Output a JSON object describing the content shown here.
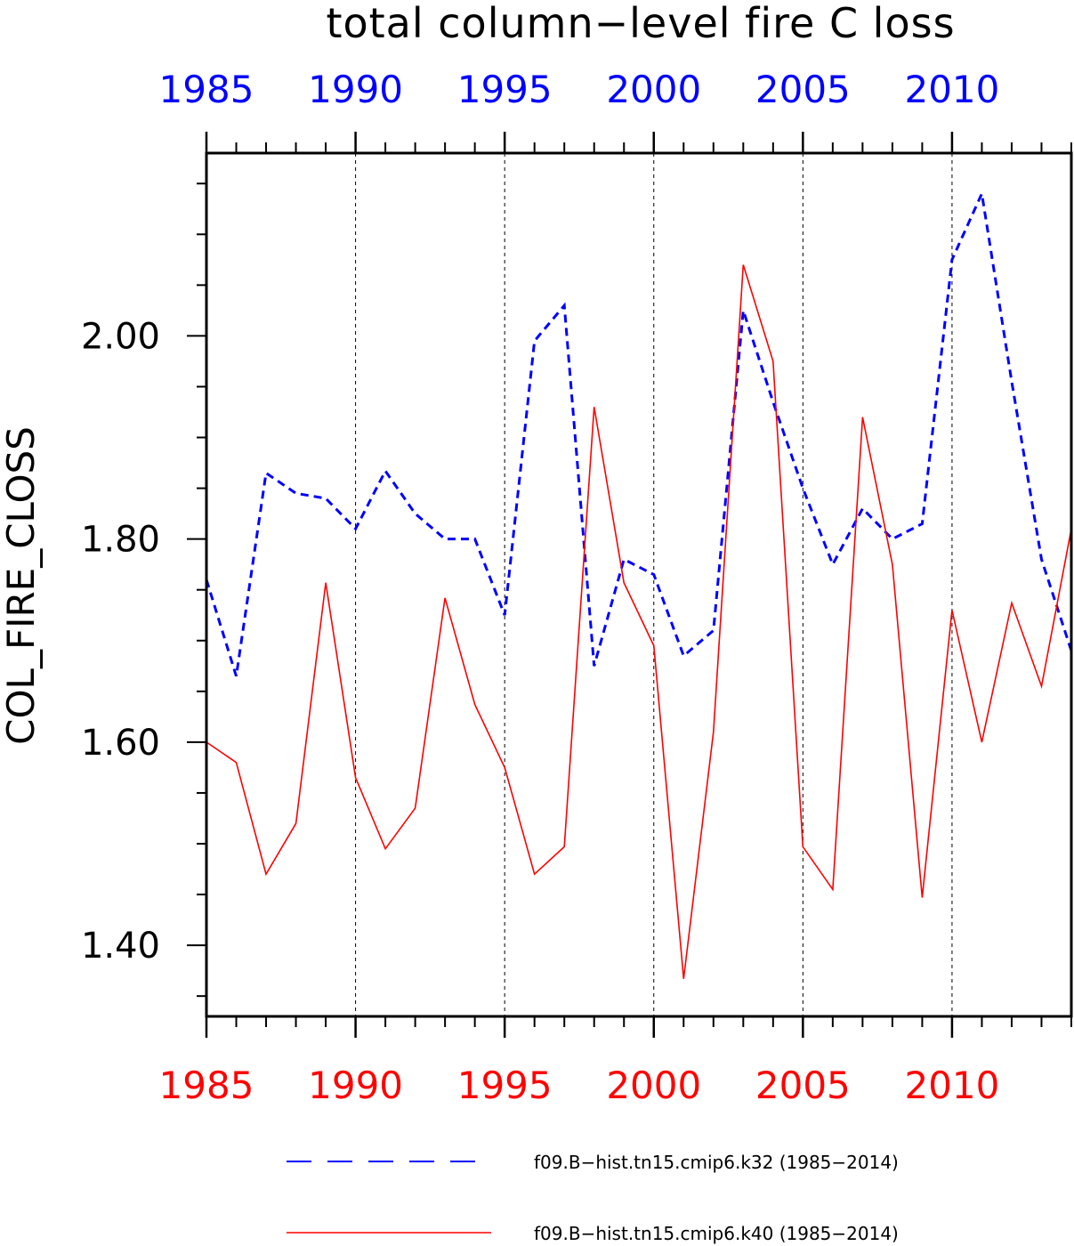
{
  "chart_data": {
    "type": "line",
    "title": "total column−level fire C loss",
    "ylabel": "COL_FIRE_CLOSS",
    "xlabel": "",
    "xlim": [
      1985,
      2014
    ],
    "ylim": [
      1.33,
      2.18
    ],
    "yticks": [
      1.4,
      1.6,
      1.8,
      2.0
    ],
    "ytick_labels": [
      "1.40",
      "1.60",
      "1.80",
      "2.00"
    ],
    "xticks_top": {
      "values": [
        1985,
        1990,
        1995,
        2000,
        2005,
        2010
      ],
      "labels": [
        "1985",
        "1990",
        "1995",
        "2000",
        "2005",
        "2010"
      ],
      "color": "#0000ff"
    },
    "xticks_bottom": {
      "values": [
        1985,
        1990,
        1995,
        2000,
        2005,
        2010
      ],
      "labels": [
        "1985",
        "1990",
        "1995",
        "2000",
        "2005",
        "2010"
      ],
      "color": "#ff0000"
    },
    "grid": "vertical dashed at major x ticks",
    "legend_position": "bottom",
    "series": [
      {
        "name": "f09.B−hist.tn15.cmip6.k32 (1985−2014)",
        "color": "#0000ff",
        "style": "dashed",
        "x": [
          1985,
          1986,
          1987,
          1988,
          1989,
          1990,
          1991,
          1992,
          1993,
          1994,
          1995,
          1996,
          1997,
          1998,
          1999,
          2000,
          2001,
          2002,
          2003,
          2004,
          2005,
          2006,
          2007,
          2008,
          2009,
          2010,
          2011,
          2012,
          2013,
          2014
        ],
        "values": [
          1.76,
          1.665,
          1.865,
          1.845,
          1.84,
          1.81,
          1.867,
          1.825,
          1.8,
          1.8,
          1.725,
          1.995,
          2.03,
          1.675,
          1.78,
          1.765,
          1.685,
          1.71,
          2.025,
          1.935,
          1.85,
          1.775,
          1.83,
          1.8,
          1.815,
          2.075,
          2.14,
          1.955,
          1.78,
          1.69
        ]
      },
      {
        "name": "f09.B−hist.tn15.cmip6.k40 (1985−2014)",
        "color": "#ff0000",
        "style": "solid",
        "x": [
          1985,
          1986,
          1987,
          1988,
          1989,
          1990,
          1991,
          1992,
          1993,
          1994,
          1995,
          1996,
          1997,
          1998,
          1999,
          2000,
          2001,
          2002,
          2003,
          2004,
          2005,
          2006,
          2007,
          2008,
          2009,
          2010,
          2011,
          2012,
          2013,
          2014
        ],
        "values": [
          1.6,
          1.58,
          1.47,
          1.52,
          1.757,
          1.565,
          1.495,
          1.535,
          1.742,
          1.637,
          1.575,
          1.47,
          1.497,
          1.93,
          1.757,
          1.695,
          1.367,
          1.61,
          2.07,
          1.975,
          1.497,
          1.455,
          1.92,
          1.775,
          1.447,
          1.73,
          1.6,
          1.737,
          1.655,
          1.81
        ]
      }
    ]
  }
}
